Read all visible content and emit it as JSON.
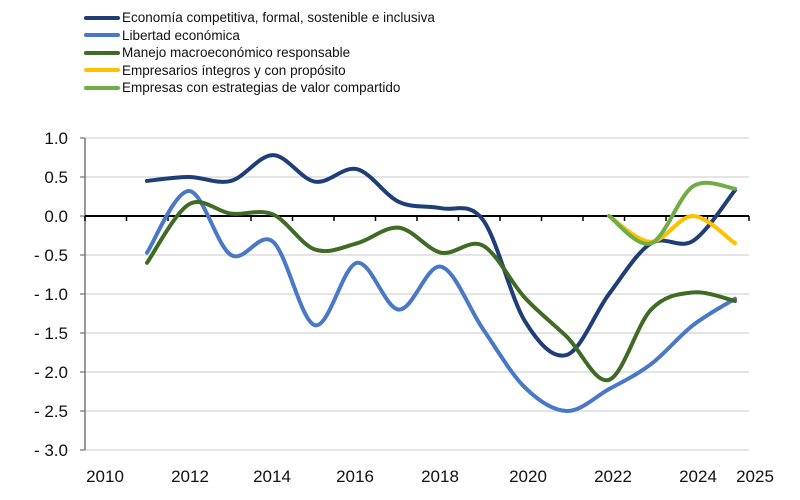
{
  "chart_data": {
    "type": "line",
    "title": "",
    "xlabel": "",
    "ylabel": "",
    "x_ticks": [
      "2010",
      "2012",
      "2014",
      "2016",
      "2018",
      "2020",
      "2022",
      "2024",
      "2025"
    ],
    "x_tick_values": [
      2010,
      2012,
      2014,
      2016,
      2018,
      2020,
      2022,
      2024,
      2025
    ],
    "y_ticks": [
      "1.0",
      "0.5",
      "0.0",
      "- 0.5",
      "- 1.0",
      "- 1.5",
      "- 2.0",
      "- 2.5",
      "- 3.0"
    ],
    "y_tick_values": [
      1.0,
      0.5,
      0.0,
      -0.5,
      -1.0,
      -1.5,
      -2.0,
      -2.5,
      -3.0
    ],
    "xlim": [
      2010,
      2025
    ],
    "ylim": [
      -3.0,
      1.0
    ],
    "grid": "horizontal",
    "legend_position": "top-left",
    "smooth": true,
    "series": [
      {
        "name": "Economía competitiva, formal, sostenible e inclusiva",
        "color": "#1F3E77",
        "x": [
          2011,
          2012,
          2013,
          2014,
          2015,
          2016,
          2017,
          2018,
          2019,
          2020,
          2021,
          2022,
          2023,
          2024,
          2025
        ],
        "values": [
          0.45,
          0.5,
          0.45,
          0.78,
          0.44,
          0.6,
          0.18,
          0.1,
          -0.05,
          -1.35,
          -1.78,
          -1.0,
          -0.35,
          -0.32,
          0.33
        ]
      },
      {
        "name": "Libertad económica",
        "color": "#4A78C8",
        "x": [
          2011,
          2012,
          2013,
          2014,
          2015,
          2016,
          2017,
          2018,
          2019,
          2020,
          2021,
          2022,
          2023,
          2024,
          2025
        ],
        "values": [
          -0.47,
          0.32,
          -0.5,
          -0.33,
          -1.4,
          -0.6,
          -1.2,
          -0.65,
          -1.45,
          -2.2,
          -2.5,
          -2.22,
          -1.9,
          -1.4,
          -1.06
        ]
      },
      {
        "name": "Manejo macroeconómico responsable",
        "color": "#3F6B25",
        "x": [
          2011,
          2012,
          2013,
          2014,
          2015,
          2016,
          2017,
          2018,
          2019,
          2020,
          2021,
          2022,
          2023,
          2024,
          2025
        ],
        "values": [
          -0.6,
          0.15,
          0.03,
          0.02,
          -0.43,
          -0.35,
          -0.15,
          -0.47,
          -0.38,
          -1.05,
          -1.55,
          -2.1,
          -1.2,
          -0.98,
          -1.09
        ]
      },
      {
        "name": "Empresarios íntegros y con propósito",
        "color": "#FFC000",
        "x": [
          2022,
          2023,
          2024,
          2025
        ],
        "values": [
          0.0,
          -0.33,
          0.0,
          -0.35
        ]
      },
      {
        "name": "Empresas con estrategias de valor compartido",
        "color": "#70AD47",
        "x": [
          2022,
          2023,
          2024,
          2025
        ],
        "values": [
          0.0,
          -0.35,
          0.38,
          0.35
        ]
      }
    ]
  }
}
